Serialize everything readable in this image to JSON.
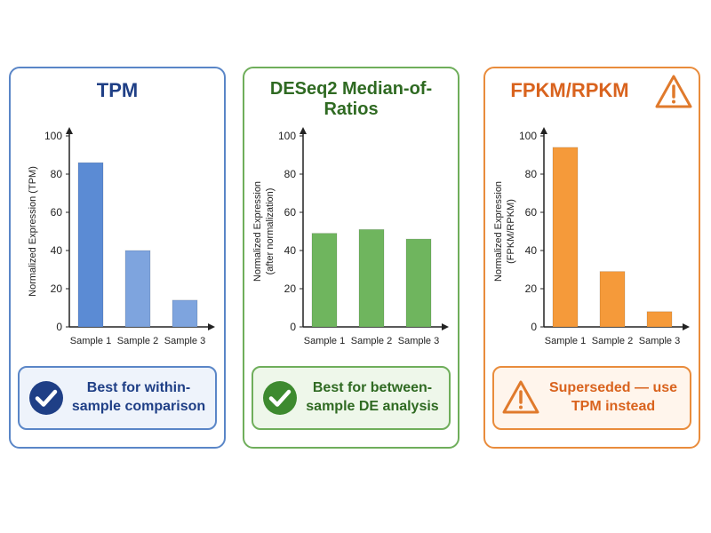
{
  "chart_data": [
    {
      "type": "bar",
      "title": "TPM",
      "ylabel": [
        "Normalized Expression (TPM)"
      ],
      "categories": [
        "Sample 1",
        "Sample 2",
        "Sample 3"
      ],
      "values": [
        86,
        40,
        14
      ],
      "ylim": [
        0,
        100
      ],
      "yticks": [
        0,
        20,
        40,
        60,
        80,
        100
      ],
      "colors": [
        "#5b8bd4",
        "#7ea4de",
        "#7ea4de"
      ],
      "grid": false
    },
    {
      "type": "bar",
      "title": "DESeq2 Median-of-Ratios",
      "ylabel": [
        "Normalized Expression",
        "(after normalization)"
      ],
      "categories": [
        "Sample 1",
        "Sample 2",
        "Sample 3"
      ],
      "values": [
        49,
        51,
        46
      ],
      "ylim": [
        0,
        100
      ],
      "yticks": [
        0,
        20,
        40,
        60,
        80,
        100
      ],
      "colors": [
        "#6fb55e",
        "#6fb55e",
        "#6fb55e"
      ],
      "grid": false
    },
    {
      "type": "bar",
      "title": "FPKM/RPKM",
      "ylabel": [
        "Normalized Expression",
        "(FPKM/RPKM)"
      ],
      "categories": [
        "Sample 1",
        "Sample 2",
        "Sample 3"
      ],
      "values": [
        94,
        29,
        8
      ],
      "ylim": [
        0,
        100
      ],
      "yticks": [
        0,
        20,
        40,
        60,
        80,
        100
      ],
      "colors": [
        "#f59a3a",
        "#f59a3a",
        "#f59a3a"
      ],
      "grid": false
    }
  ],
  "callouts": {
    "tpm": {
      "text": "Best for within-sample comparison",
      "icon": "check-circle-icon",
      "color": "#1f3f86"
    },
    "deseq": {
      "text": "Best for between-sample DE analysis",
      "icon": "check-circle-icon",
      "color": "#3d8a2f"
    },
    "fpkm": {
      "text": "Superseded — use TPM instead",
      "icon": "warning-triangle-icon",
      "color": "#e07a2c"
    }
  },
  "header_icon": {
    "fpkm": "warning-triangle-icon",
    "color": "#e07a2c"
  }
}
